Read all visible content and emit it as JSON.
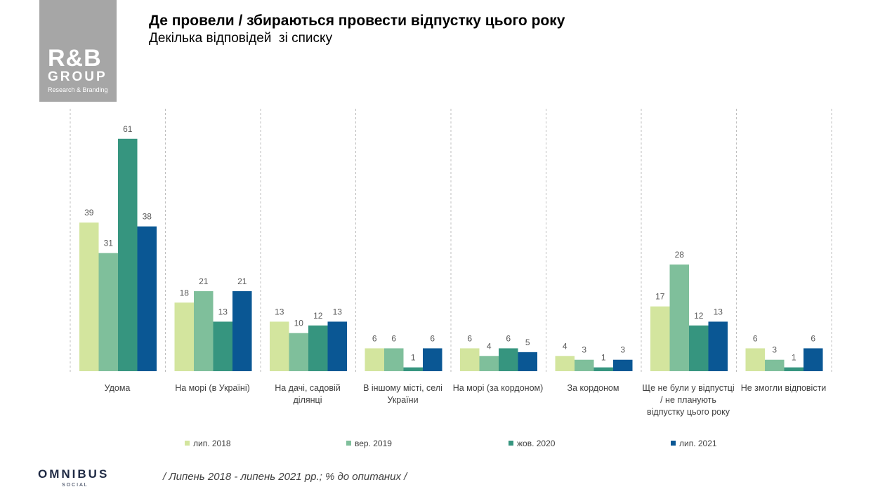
{
  "logo": {
    "main": "R&B",
    "group": "GROUP",
    "sub": "Research & Branding"
  },
  "title": "Де провели / збираються провести відпустку цього року",
  "subtitle": "Декілька відповідей  зі списку",
  "chart_data": {
    "type": "bar",
    "title": "Де провели / збираються провести відпустку цього року",
    "subtitle": "Декілька відповідей  зі списку",
    "categories": [
      "Удома",
      "На морі (в Україні)",
      "На дачі, садовій ділянці",
      "В іншому місті, селі України",
      "На морі (за кордоном)",
      "За кордоном",
      "Ще не були у відпустці  / не планують відпустку цього року",
      "Не змогли відповісти"
    ],
    "series": [
      {
        "name": "лип. 2018",
        "color": "#d3e59e",
        "values": [
          39,
          18,
          13,
          6,
          6,
          4,
          17,
          6
        ]
      },
      {
        "name": "вер. 2019",
        "color": "#7fbf9b",
        "values": [
          31,
          21,
          10,
          6,
          4,
          3,
          28,
          3
        ]
      },
      {
        "name": "жов. 2020",
        "color": "#36957f",
        "values": [
          61,
          13,
          12,
          1,
          6,
          1,
          12,
          1
        ]
      },
      {
        "name": "лип. 2021",
        "color": "#0a5794",
        "values": [
          38,
          21,
          13,
          6,
          5,
          3,
          13,
          6
        ]
      }
    ],
    "xlabel": "",
    "ylabel": "",
    "ylim": [
      0,
      65
    ],
    "grid": false,
    "legend": "bottom",
    "data_labels": true
  },
  "footer": {
    "brand": "OMNIBUS",
    "brand_sub": "SOCIAL",
    "note": "/ Липень 2018 - липень 2021 рр.; % до опитаних /"
  }
}
